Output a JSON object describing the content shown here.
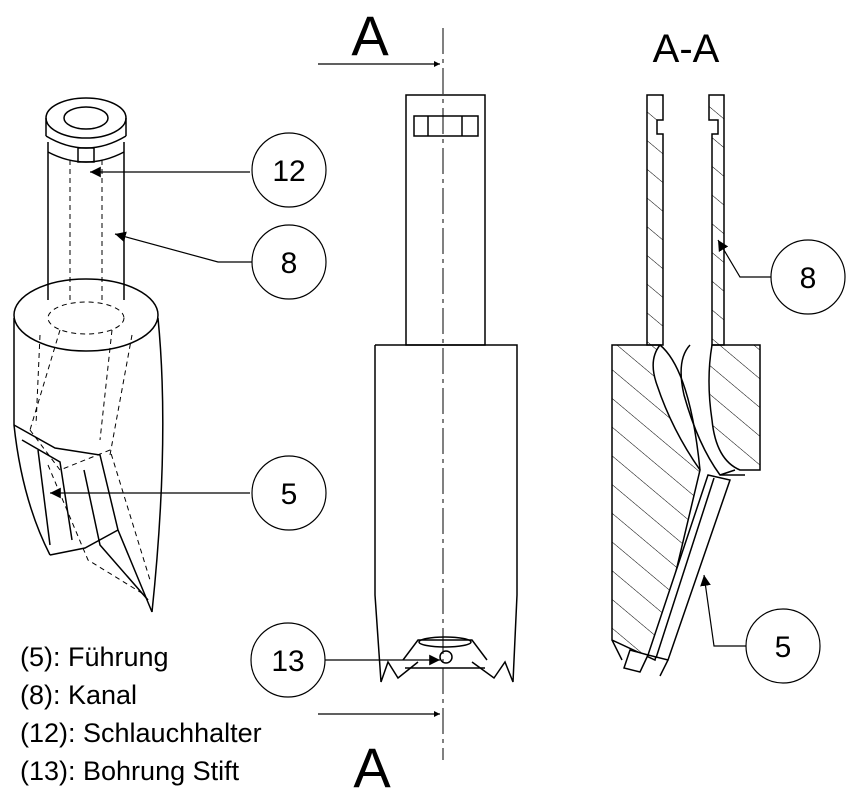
{
  "section_marker": "A",
  "section_title": "A-A",
  "callouts": {
    "iso_12": "12",
    "iso_8": "8",
    "iso_5": "5",
    "front_13": "13",
    "section_8": "8",
    "section_5": "5"
  },
  "legend": [
    "(5): Führung",
    "(8): Kanal",
    "(12): Schlauchhalter",
    "(13): Bohrung Stift"
  ]
}
